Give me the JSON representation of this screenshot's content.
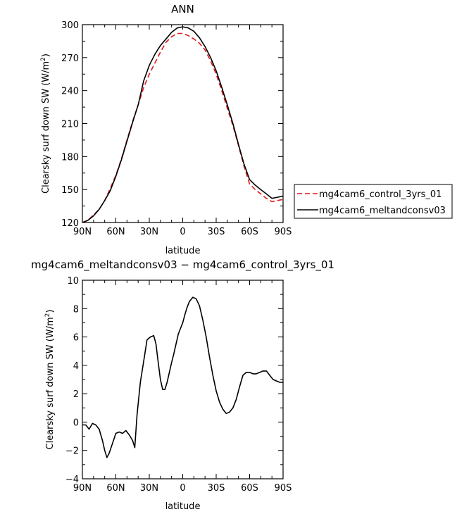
{
  "chart_data": [
    {
      "type": "line",
      "title": "ANN",
      "xlabel": "latitude",
      "ylabel_main": "Clearsky surf down SW (W/m",
      "ylabel_sup": "2",
      "ylabel_end": ")",
      "xlim": [
        90,
        -90
      ],
      "ylim": [
        120,
        300
      ],
      "x_ticks": [
        90,
        60,
        30,
        0,
        -30,
        -60,
        -90
      ],
      "x_tick_labels": [
        "90N",
        "60N",
        "30N",
        "0",
        "30S",
        "60S",
        "90S"
      ],
      "y_ticks": [
        120,
        150,
        180,
        210,
        240,
        270,
        300
      ],
      "y_tick_labels": [
        "120",
        "150",
        "180",
        "210",
        "240",
        "270",
        "300"
      ],
      "legend_position": "right",
      "x": [
        90,
        85,
        80,
        75,
        70,
        65,
        60,
        55,
        50,
        45,
        40,
        35,
        30,
        25,
        20,
        15,
        10,
        5,
        0,
        -5,
        -10,
        -15,
        -20,
        -25,
        -30,
        -35,
        -40,
        -45,
        -50,
        -55,
        -60,
        -65,
        -70,
        -75,
        -80,
        -85,
        -90
      ],
      "series": [
        {
          "name": "mg4cam6_control_3yrs_01",
          "color": "#e0191b",
          "dash": "dashed",
          "values": [
            120,
            122,
            127,
            132,
            140,
            151,
            163,
            178,
            195,
            212,
            227,
            243,
            255,
            265,
            275,
            284,
            289,
            292,
            292,
            290,
            287,
            283,
            277,
            267,
            255,
            240,
            224,
            208,
            190,
            171,
            155,
            150,
            146,
            142,
            139,
            140,
            141
          ]
        },
        {
          "name": "mg4cam6_meltandconsv03",
          "color": "#000000",
          "dash": "solid",
          "values": [
            120,
            122,
            126,
            132,
            140,
            149,
            162,
            177,
            194,
            211,
            227,
            249,
            263,
            273,
            281,
            287,
            293,
            297,
            298,
            297,
            294,
            288,
            280,
            270,
            258,
            243,
            227,
            210,
            191,
            173,
            159,
            154,
            150,
            146,
            142,
            143,
            144
          ]
        }
      ]
    },
    {
      "type": "line",
      "title": "mg4cam6_meltandconsv03 − mg4cam6_control_3yrs_01",
      "xlabel": "latitude",
      "ylabel_main": "Clearsky surf down SW (W/m",
      "ylabel_sup": "2",
      "ylabel_end": ")",
      "xlim": [
        90,
        -90
      ],
      "ylim": [
        -4,
        10
      ],
      "x_ticks": [
        90,
        60,
        30,
        0,
        -30,
        -60,
        -90
      ],
      "x_tick_labels": [
        "90N",
        "60N",
        "30N",
        "0",
        "30S",
        "60S",
        "90S"
      ],
      "y_ticks": [
        -4,
        -2,
        0,
        2,
        4,
        6,
        8,
        10
      ],
      "y_tick_labels": [
        "−4",
        "−2",
        "0",
        "2",
        "4",
        "6",
        "8",
        "10"
      ],
      "x": [
        90,
        87,
        84,
        81,
        78,
        75,
        72,
        70,
        68,
        66,
        63,
        60,
        57,
        54,
        51,
        48,
        45,
        43,
        41,
        38,
        35,
        32,
        29,
        26,
        24,
        22,
        20,
        18,
        16,
        14,
        12,
        10,
        8,
        6,
        4,
        2,
        0,
        -2,
        -4,
        -6,
        -9,
        -12,
        -15,
        -18,
        -21,
        -24,
        -27,
        -30,
        -33,
        -36,
        -39,
        -42,
        -45,
        -48,
        -51,
        -54,
        -57,
        -60,
        -63,
        -66,
        -69,
        -72,
        -75,
        -78,
        -81,
        -84,
        -87,
        -90
      ],
      "series": [
        {
          "name": "",
          "color": "#000000",
          "dash": "solid",
          "values": [
            -0.2,
            -0.2,
            -0.5,
            -0.1,
            -0.2,
            -0.5,
            -1.3,
            -2.0,
            -2.5,
            -2.2,
            -1.5,
            -0.8,
            -0.7,
            -0.8,
            -0.6,
            -0.9,
            -1.3,
            -1.8,
            0.5,
            2.8,
            4.3,
            5.8,
            6.0,
            6.1,
            5.5,
            4.2,
            3.0,
            2.3,
            2.3,
            2.8,
            3.5,
            4.2,
            4.8,
            5.5,
            6.2,
            6.6,
            7.0,
            7.6,
            8.1,
            8.5,
            8.8,
            8.7,
            8.2,
            7.2,
            6.0,
            4.6,
            3.3,
            2.2,
            1.4,
            0.9,
            0.6,
            0.7,
            1.0,
            1.6,
            2.5,
            3.3,
            3.5,
            3.5,
            3.4,
            3.4,
            3.5,
            3.6,
            3.6,
            3.3,
            3.0,
            2.9,
            2.8,
            2.8
          ]
        }
      ]
    }
  ]
}
